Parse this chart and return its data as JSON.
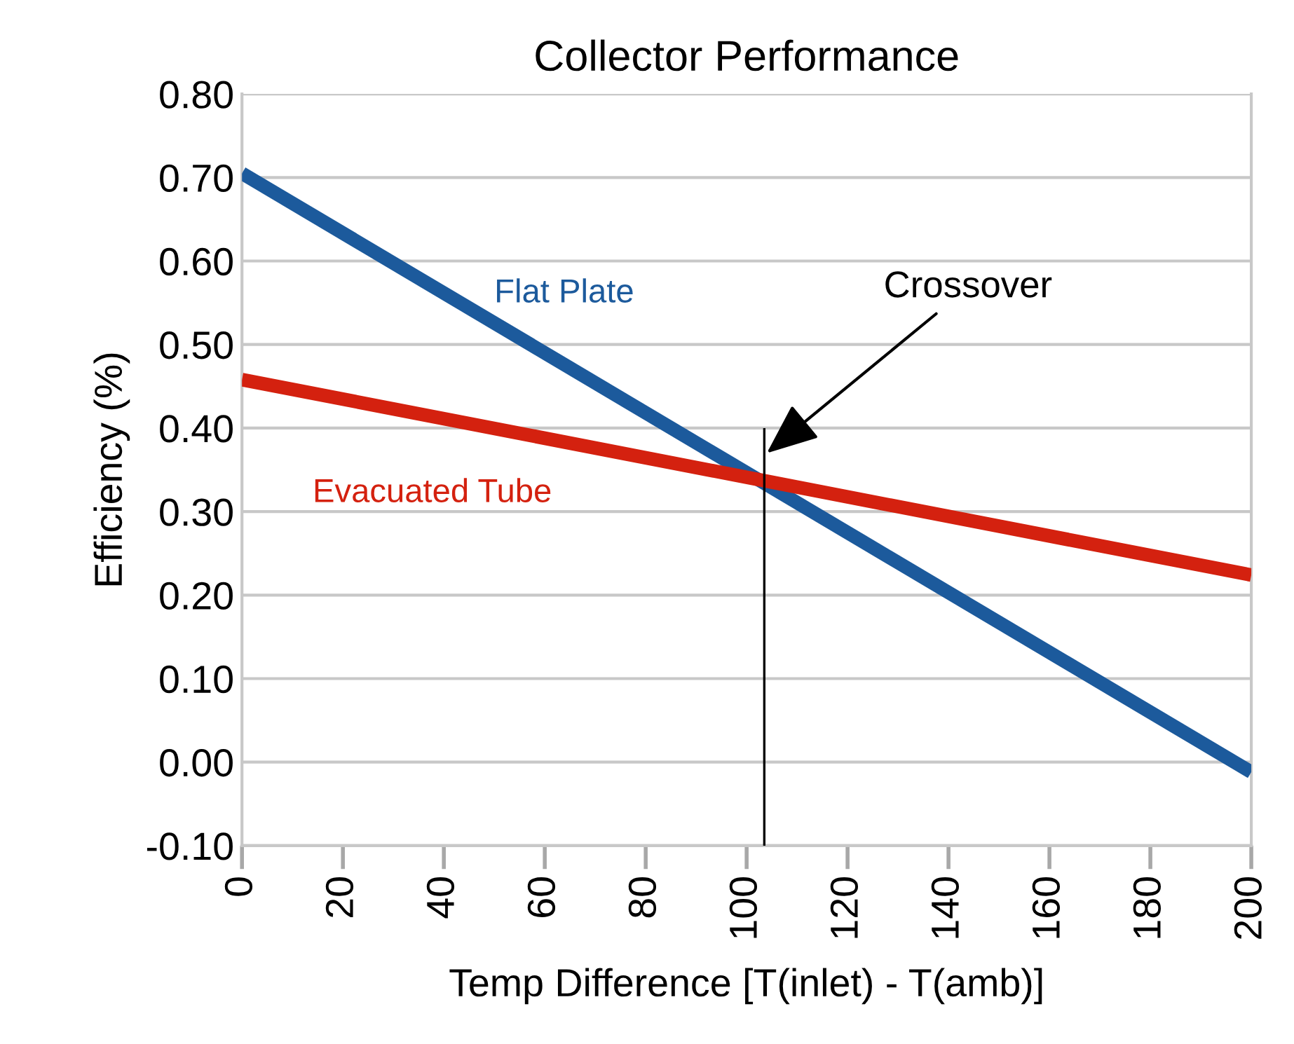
{
  "chart_data": {
    "type": "line",
    "title": "Collector Performance",
    "xlabel": "Temp Difference [T(inlet) - T(amb)]",
    "ylabel": "Efficiency (%)",
    "x": [
      0,
      200
    ],
    "series": [
      {
        "name": "Flat Plate",
        "color": "#1c5a9c",
        "values": [
          0.705,
          -0.012
        ]
      },
      {
        "name": "Evacuated Tube",
        "color": "#d4210f",
        "values": [
          0.458,
          0.224
        ]
      },
      {
        "type": "line",
        "color": "#000000",
        "x": [
          103.5,
          103.5
        ],
        "values": [
          -0.1,
          0.4
        ]
      }
    ],
    "annotations": [
      {
        "text": "Crossover",
        "x": 104,
        "y": 0.37
      }
    ],
    "xlim": [
      0,
      200
    ],
    "ylim": [
      -0.1,
      0.8
    ],
    "xticks": [
      0,
      20,
      40,
      60,
      80,
      100,
      120,
      140,
      160,
      180,
      200
    ],
    "yticks": [
      {
        "value": -0.1,
        "label": "-0.10"
      },
      {
        "value": 0,
        "label": "0.00"
      },
      {
        "value": 0.1,
        "label": "0.10"
      },
      {
        "value": 0.2,
        "label": "0.20"
      },
      {
        "value": 0.3,
        "label": "0.30"
      },
      {
        "value": 0.4,
        "label": "0.40"
      },
      {
        "value": 0.5,
        "label": "0.50"
      },
      {
        "value": 0.6,
        "label": "0.60"
      },
      {
        "value": 0.7,
        "label": "0.70"
      },
      {
        "value": 0.8,
        "label": "0.80"
      }
    ],
    "grid": "y",
    "legend": false,
    "marker": "none",
    "line_style": "solid"
  }
}
